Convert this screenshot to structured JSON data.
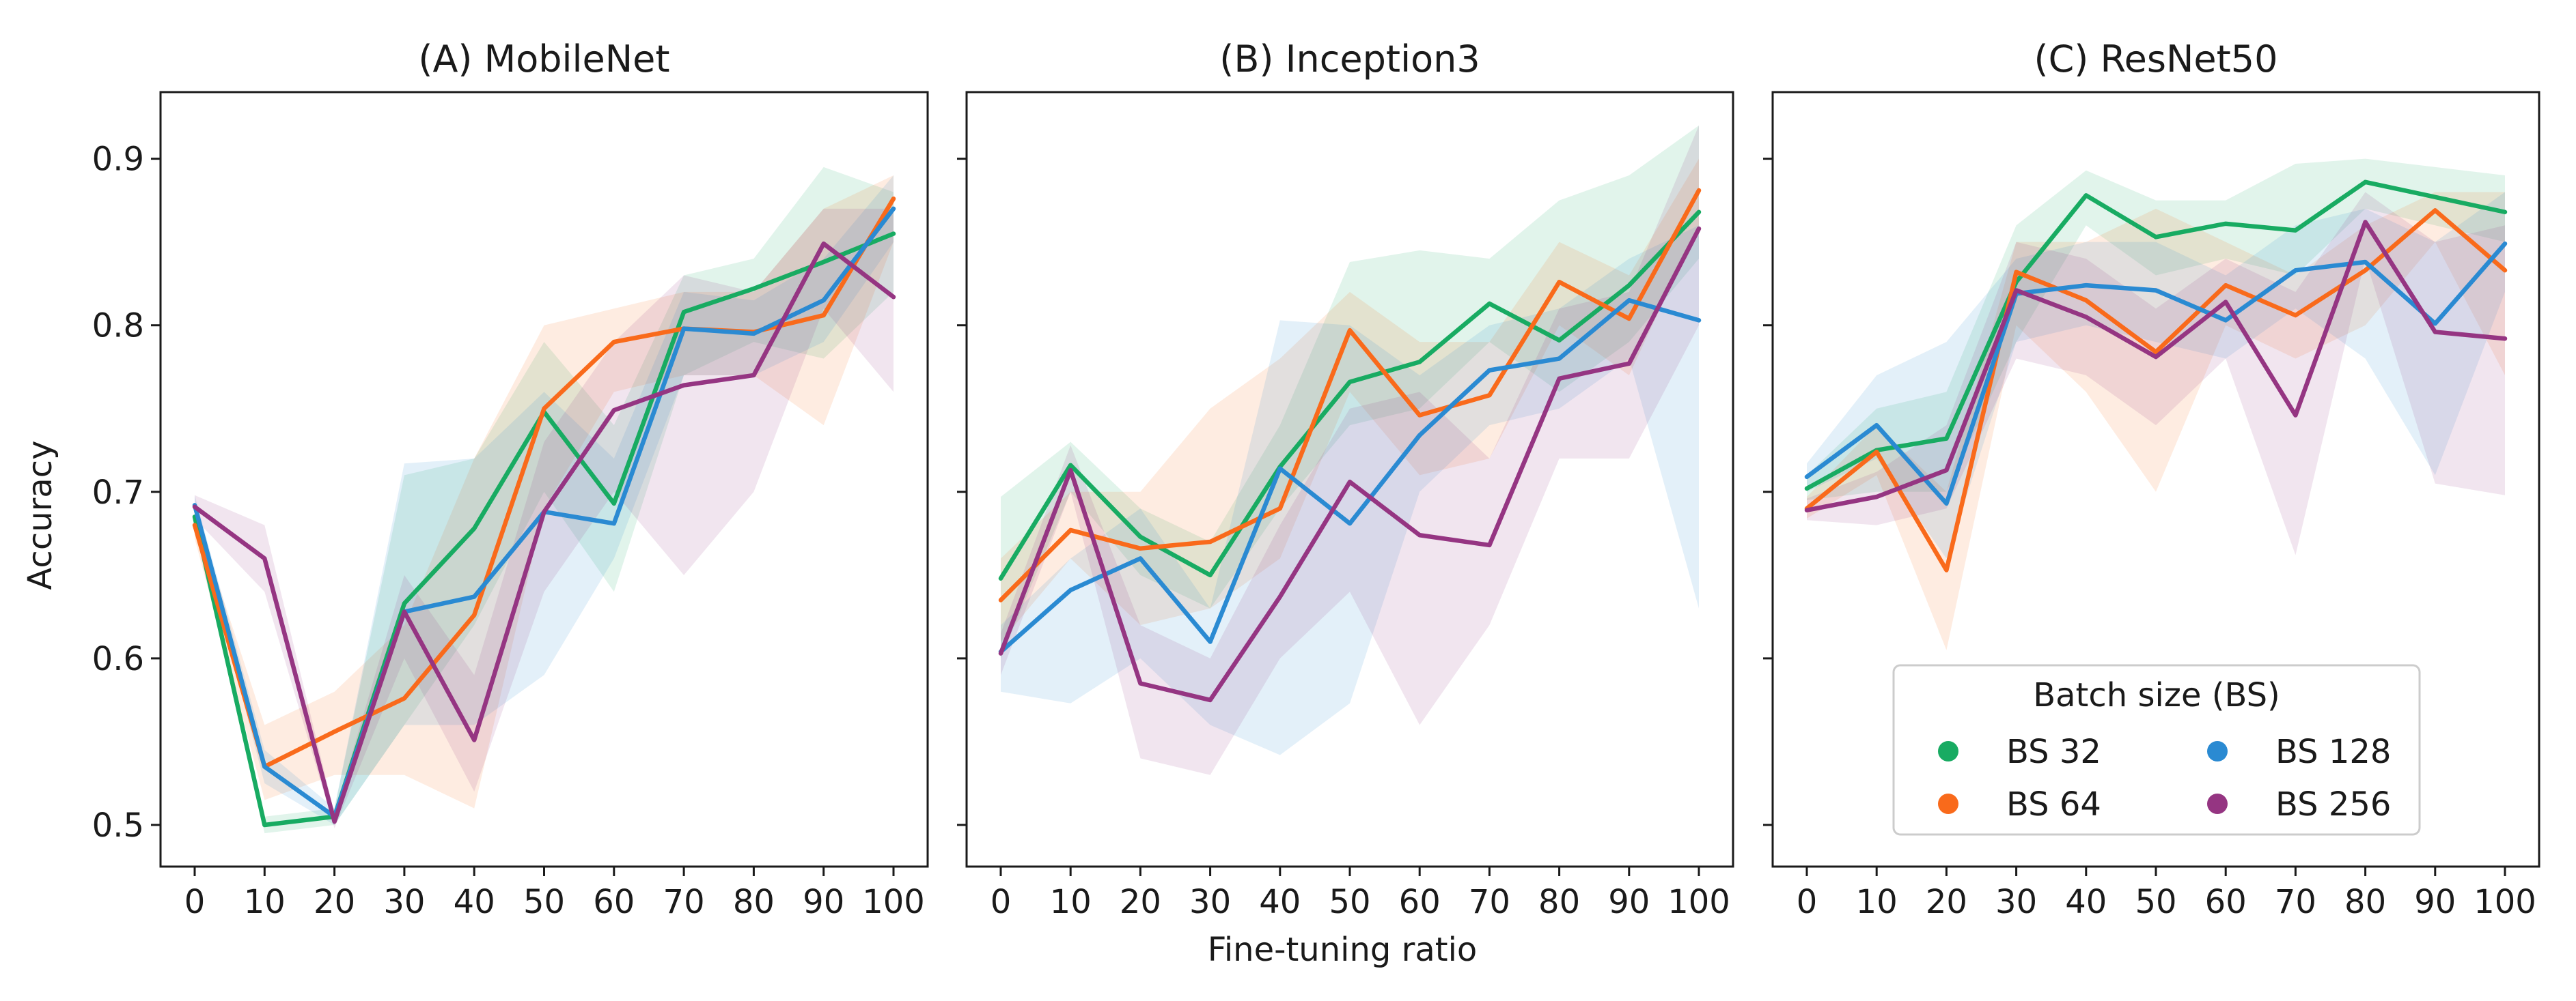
{
  "chart_data": {
    "type": "line",
    "xlabel": "Fine-tuning ratio",
    "ylabel": "Accuracy",
    "x": [
      0,
      10,
      20,
      30,
      40,
      50,
      60,
      70,
      80,
      90,
      100
    ],
    "xticks": [
      "0",
      "10",
      "20",
      "30",
      "40",
      "50",
      "60",
      "70",
      "80",
      "90",
      "100"
    ],
    "yticks": [
      "0.5",
      "0.6",
      "0.7",
      "0.8",
      "0.9"
    ],
    "ylim": [
      0.475,
      0.94
    ],
    "legend": {
      "title": "Batch size (BS)",
      "placement": "lower-right of panel C",
      "entries": [
        "BS 32",
        "BS 64",
        "BS 128",
        "BS 256"
      ]
    },
    "colors": {
      "BS 32": "#18ab62",
      "BS 64": "#f96a1b",
      "BS 128": "#2a8ad2",
      "BS 256": "#953582"
    },
    "panels": [
      {
        "title": "(A) MobileNet",
        "series": [
          {
            "name": "BS 32",
            "values": [
              0.685,
              0.5,
              0.505,
              0.633,
              0.678,
              0.748,
              0.693,
              0.808,
              0.822,
              0.838,
              0.855
            ],
            "lower": [
              0.678,
              0.495,
              0.5,
              0.56,
              0.62,
              0.7,
              0.64,
              0.77,
              0.79,
              0.78,
              0.82
            ],
            "upper": [
              0.692,
              0.505,
              0.51,
              0.71,
              0.72,
              0.79,
              0.74,
              0.83,
              0.84,
              0.895,
              0.88
            ]
          },
          {
            "name": "BS 64",
            "values": [
              0.68,
              0.535,
              0.556,
              0.576,
              0.626,
              0.75,
              0.79,
              0.798,
              0.796,
              0.806,
              0.876
            ],
            "lower": [
              0.672,
              0.515,
              0.53,
              0.53,
              0.51,
              0.69,
              0.76,
              0.77,
              0.77,
              0.74,
              0.85
            ],
            "upper": [
              0.688,
              0.56,
              0.58,
              0.62,
              0.72,
              0.8,
              0.81,
              0.82,
              0.82,
              0.87,
              0.89
            ]
          },
          {
            "name": "BS 128",
            "values": [
              0.692,
              0.535,
              0.505,
              0.628,
              0.637,
              0.688,
              0.681,
              0.798,
              0.795,
              0.815,
              0.87
            ],
            "lower": [
              0.686,
              0.525,
              0.5,
              0.56,
              0.56,
              0.59,
              0.66,
              0.77,
              0.77,
              0.79,
              0.85
            ],
            "upper": [
              0.698,
              0.545,
              0.51,
              0.717,
              0.72,
              0.76,
              0.72,
              0.82,
              0.815,
              0.84,
              0.89
            ]
          },
          {
            "name": "BS 256",
            "values": [
              0.691,
              0.66,
              0.502,
              0.628,
              0.551,
              0.688,
              0.749,
              0.764,
              0.77,
              0.849,
              0.817
            ],
            "lower": [
              0.684,
              0.64,
              0.498,
              0.6,
              0.52,
              0.64,
              0.7,
              0.65,
              0.7,
              0.81,
              0.76
            ],
            "upper": [
              0.698,
              0.68,
              0.507,
              0.65,
              0.59,
              0.73,
              0.79,
              0.83,
              0.82,
              0.87,
              0.87
            ]
          }
        ]
      },
      {
        "title": "(B) Inception3",
        "series": [
          {
            "name": "BS 32",
            "values": [
              0.648,
              0.716,
              0.673,
              0.65,
              0.715,
              0.766,
              0.778,
              0.813,
              0.791,
              0.824,
              0.868
            ],
            "lower": [
              0.6,
              0.7,
              0.65,
              0.63,
              0.69,
              0.74,
              0.75,
              0.79,
              0.76,
              0.79,
              0.84
            ],
            "upper": [
              0.697,
              0.73,
              0.69,
              0.67,
              0.74,
              0.838,
              0.845,
              0.84,
              0.875,
              0.89,
              0.92
            ]
          },
          {
            "name": "BS 64",
            "values": [
              0.635,
              0.677,
              0.666,
              0.67,
              0.69,
              0.797,
              0.746,
              0.758,
              0.826,
              0.804,
              0.881
            ],
            "lower": [
              0.61,
              0.66,
              0.62,
              0.63,
              0.66,
              0.76,
              0.71,
              0.72,
              0.8,
              0.77,
              0.86
            ],
            "upper": [
              0.66,
              0.7,
              0.7,
              0.75,
              0.78,
              0.82,
              0.79,
              0.79,
              0.85,
              0.83,
              0.9
            ]
          },
          {
            "name": "BS 128",
            "values": [
              0.604,
              0.641,
              0.66,
              0.61,
              0.714,
              0.681,
              0.734,
              0.773,
              0.78,
              0.815,
              0.803
            ],
            "lower": [
              0.58,
              0.573,
              0.6,
              0.56,
              0.542,
              0.573,
              0.7,
              0.74,
              0.75,
              0.78,
              0.63
            ],
            "upper": [
              0.62,
              0.66,
              0.69,
              0.63,
              0.803,
              0.8,
              0.77,
              0.8,
              0.81,
              0.84,
              0.86
            ]
          },
          {
            "name": "BS 256",
            "values": [
              0.603,
              0.713,
              0.585,
              0.575,
              0.637,
              0.706,
              0.674,
              0.668,
              0.768,
              0.777,
              0.858
            ],
            "lower": [
              0.59,
              0.7,
              0.54,
              0.53,
              0.6,
              0.64,
              0.56,
              0.62,
              0.72,
              0.72,
              0.8
            ],
            "upper": [
              0.615,
              0.728,
              0.62,
              0.6,
              0.68,
              0.75,
              0.76,
              0.72,
              0.81,
              0.82,
              0.92
            ]
          }
        ]
      },
      {
        "title": "(C) ResNet50",
        "series": [
          {
            "name": "BS 32",
            "values": [
              0.702,
              0.725,
              0.732,
              0.826,
              0.878,
              0.853,
              0.861,
              0.857,
              0.886,
              0.877,
              0.868
            ],
            "lower": [
              0.695,
              0.7,
              0.7,
              0.79,
              0.86,
              0.83,
              0.84,
              0.83,
              0.87,
              0.86,
              0.85
            ],
            "upper": [
              0.71,
              0.75,
              0.76,
              0.86,
              0.893,
              0.875,
              0.875,
              0.897,
              0.9,
              0.895,
              0.89
            ]
          },
          {
            "name": "BS 64",
            "values": [
              0.69,
              0.724,
              0.653,
              0.832,
              0.815,
              0.784,
              0.824,
              0.806,
              0.833,
              0.869,
              0.833
            ],
            "lower": [
              0.684,
              0.71,
              0.605,
              0.8,
              0.76,
              0.7,
              0.8,
              0.78,
              0.8,
              0.85,
              0.77
            ],
            "upper": [
              0.697,
              0.74,
              0.7,
              0.85,
              0.85,
              0.87,
              0.85,
              0.83,
              0.86,
              0.88,
              0.88
            ]
          },
          {
            "name": "BS 128",
            "values": [
              0.709,
              0.74,
              0.693,
              0.819,
              0.824,
              0.821,
              0.803,
              0.833,
              0.838,
              0.801,
              0.849
            ],
            "lower": [
              0.7,
              0.72,
              0.66,
              0.79,
              0.8,
              0.79,
              0.78,
              0.81,
              0.78,
              0.71,
              0.82
            ],
            "upper": [
              0.717,
              0.77,
              0.79,
              0.84,
              0.85,
              0.85,
              0.83,
              0.86,
              0.87,
              0.85,
              0.88
            ]
          },
          {
            "name": "BS 256",
            "values": [
              0.689,
              0.697,
              0.713,
              0.821,
              0.805,
              0.781,
              0.814,
              0.746,
              0.862,
              0.796,
              0.792
            ],
            "lower": [
              0.683,
              0.68,
              0.69,
              0.78,
              0.77,
              0.74,
              0.78,
              0.662,
              0.84,
              0.705,
              0.698
            ],
            "upper": [
              0.696,
              0.712,
              0.74,
              0.85,
              0.84,
              0.81,
              0.84,
              0.82,
              0.88,
              0.85,
              0.86
            ]
          }
        ]
      }
    ]
  }
}
